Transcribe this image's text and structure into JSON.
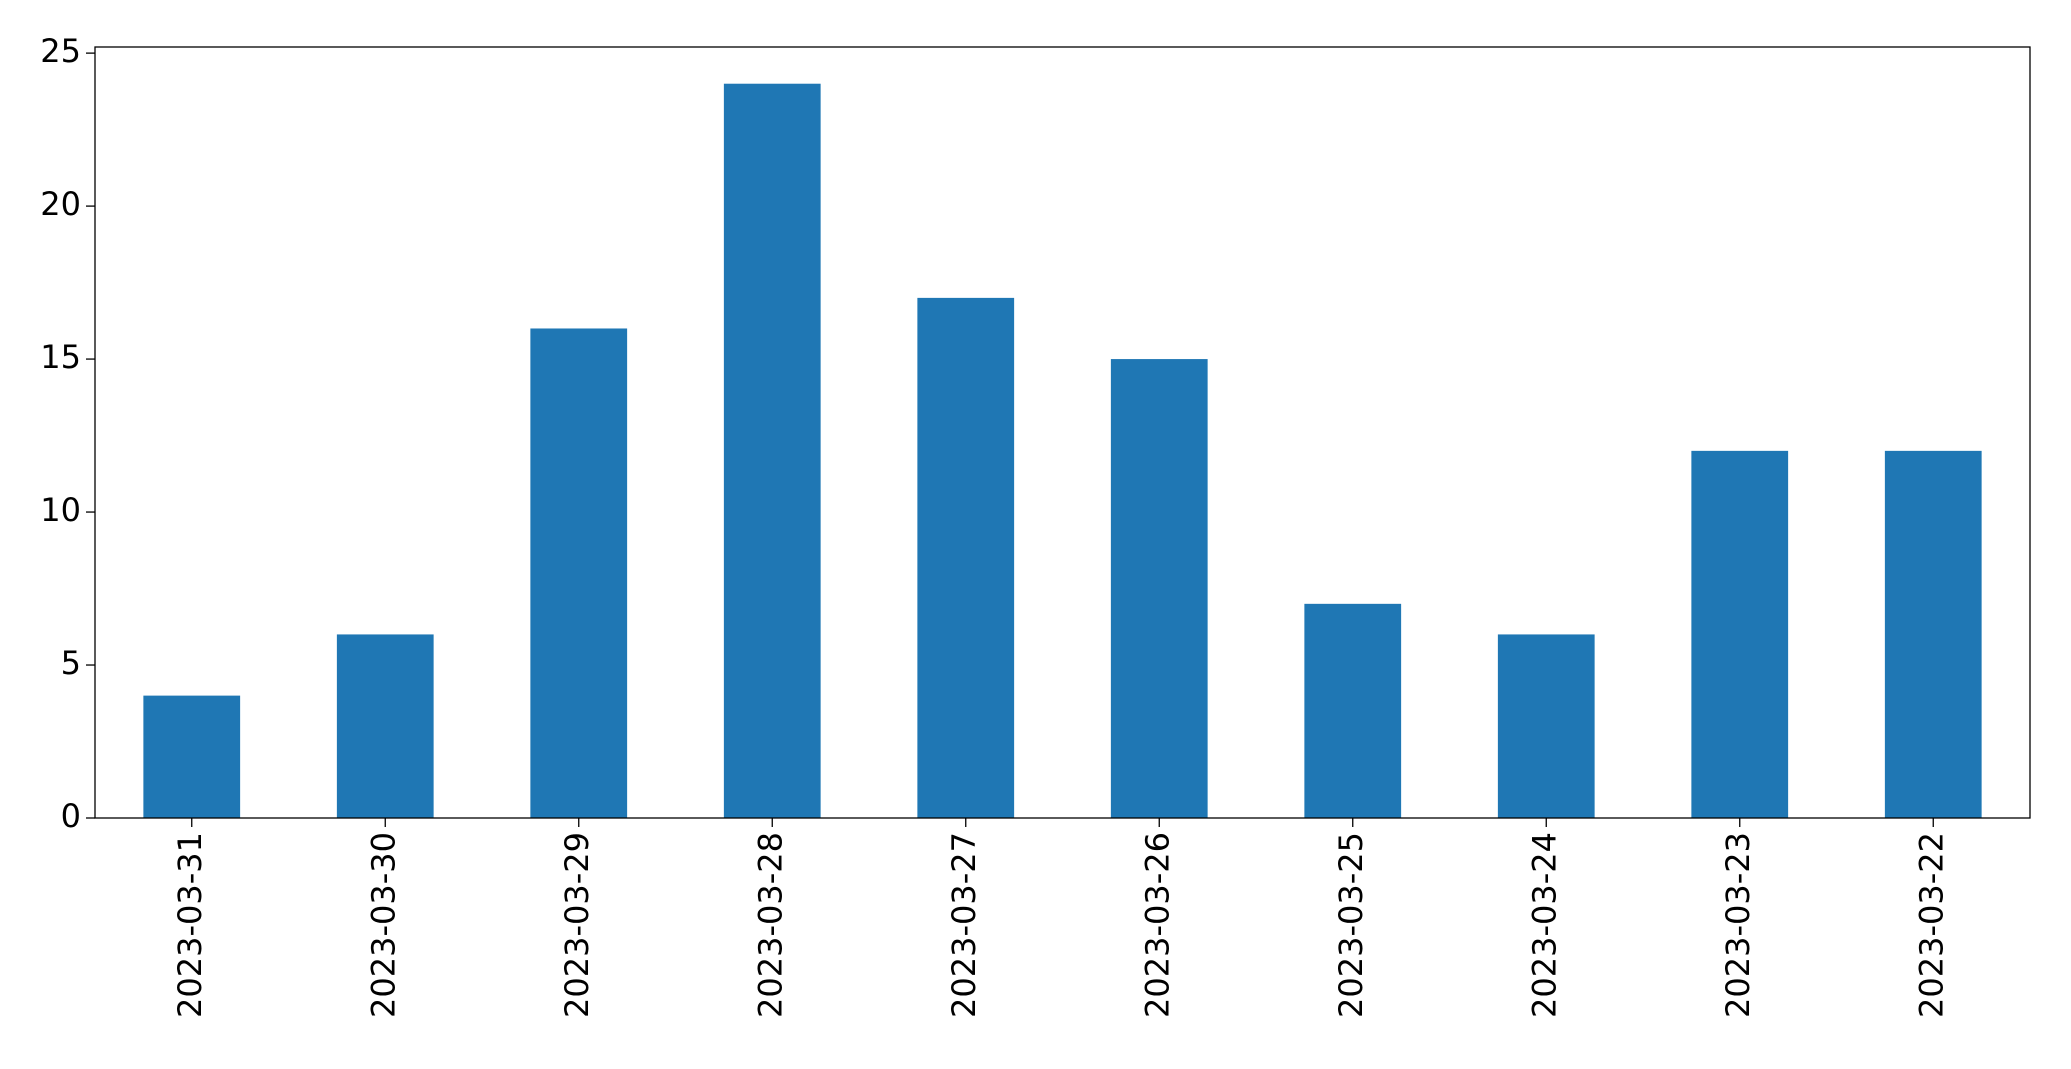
{
  "chart_data": {
    "type": "bar",
    "categories": [
      "2023-03-31",
      "2023-03-30",
      "2023-03-29",
      "2023-03-28",
      "2023-03-27",
      "2023-03-26",
      "2023-03-25",
      "2023-03-24",
      "2023-03-23",
      "2023-03-22"
    ],
    "values": [
      4,
      6,
      16,
      24,
      17,
      15,
      7,
      6,
      12,
      12
    ],
    "color": "#1f77b4",
    "ylim": [
      0,
      25.2
    ],
    "yticks": [
      0,
      5,
      10,
      15,
      20,
      25
    ],
    "grid": false
  }
}
